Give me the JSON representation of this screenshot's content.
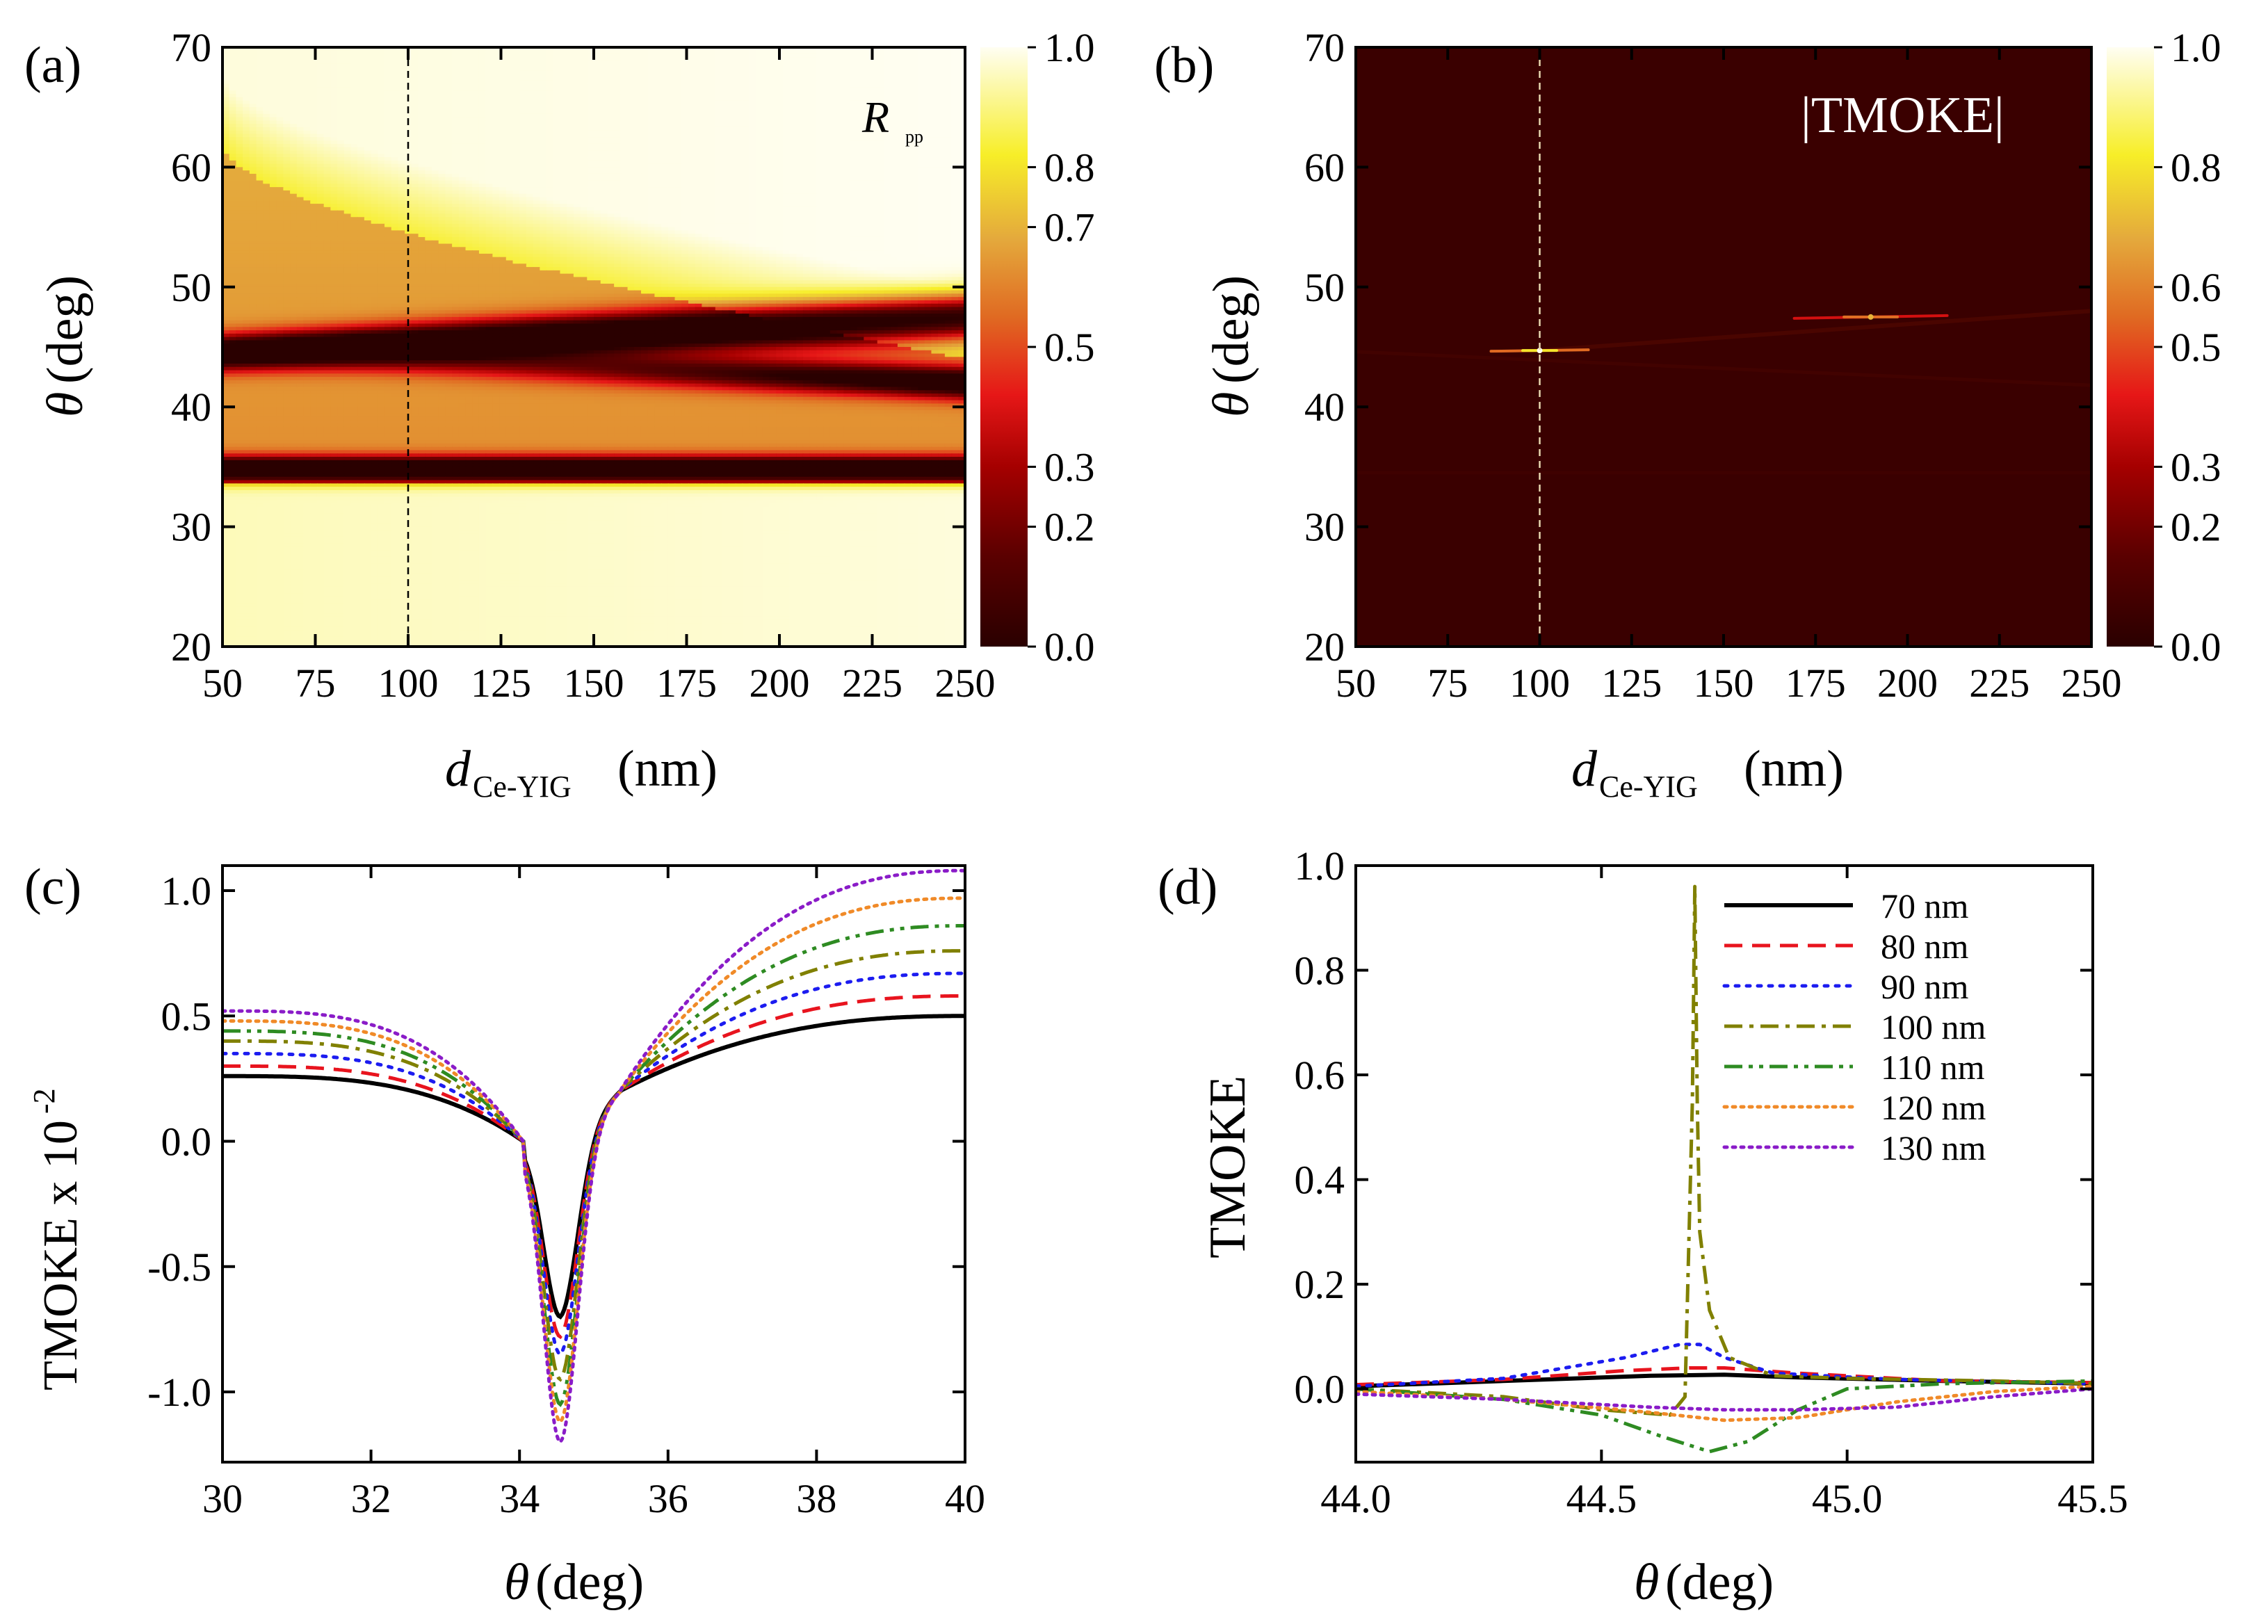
{
  "chart_data": [
    {
      "panel": "(a)",
      "type": "heatmap",
      "title": "R",
      "title_sub": "pp",
      "xlabel": "d",
      "xlabel_sub": "Ce-YIG",
      "xlabel_unit": "(nm)",
      "ylabel_sym": "θ",
      "ylabel_unit": "(deg)",
      "xlim": [
        50,
        250
      ],
      "ylim": [
        20,
        70
      ],
      "xticks": [
        "50",
        "75",
        "100",
        "125",
        "150",
        "175",
        "200",
        "225",
        "250"
      ],
      "yticks": [
        "20",
        "30",
        "40",
        "50",
        "60",
        "70"
      ],
      "colorbar": {
        "range": [
          0,
          1
        ],
        "ticks": [
          "0.0",
          "0.2",
          "0.3",
          "0.5",
          "0.7",
          "0.8",
          "1.0"
        ]
      },
      "marker_line_x": 100,
      "features": [
        {
          "description_value": "dip",
          "theta": 34.8,
          "strength": 0.97
        },
        {
          "description_value": "dip",
          "theta_at_50": 44.5,
          "theta_at_250": 47.5,
          "strength": 0.93
        },
        {
          "description_value": "dip",
          "theta_at_50": 44.5,
          "theta_at_250": 42.0,
          "strength": 0.85
        }
      ]
    },
    {
      "panel": "(b)",
      "type": "heatmap",
      "title": "|TMOKE|",
      "xlabel": "d",
      "xlabel_sub": "Ce-YIG",
      "xlabel_unit": "(nm)",
      "ylabel_sym": "θ",
      "ylabel_unit": "(deg)",
      "xlim": [
        50,
        250
      ],
      "ylim": [
        20,
        70
      ],
      "xticks": [
        "50",
        "75",
        "100",
        "125",
        "150",
        "175",
        "200",
        "225",
        "250"
      ],
      "yticks": [
        "20",
        "30",
        "40",
        "50",
        "60",
        "70"
      ],
      "colorbar": {
        "range": [
          0,
          1
        ],
        "ticks": [
          "0.0",
          "0.2",
          "0.3",
          "0.5",
          "0.6",
          "0.8",
          "1.0"
        ]
      },
      "marker_line_x": 100,
      "hot_spots": [
        {
          "d": 100,
          "theta": 44.7,
          "value": 1.0
        },
        {
          "d": 190,
          "theta": 47.5,
          "value": 0.7
        }
      ]
    },
    {
      "panel": "(c)",
      "type": "line",
      "xlabel_sym": "θ",
      "xlabel_unit": "(deg)",
      "ylabel": "TMOKE x 10",
      "ylabel_exp": "-2",
      "xlim": [
        30,
        40
      ],
      "ylim": [
        -1.28,
        1.1
      ],
      "xticks": [
        "30",
        "32",
        "34",
        "36",
        "38",
        "40"
      ],
      "yticks": [
        "-1.0",
        "-0.5",
        "0.0",
        "0.5",
        "1.0"
      ],
      "series": [
        {
          "name": "70 nm",
          "left": 0.26,
          "right": 0.5,
          "min": -0.7,
          "color": "#000000",
          "dash": "solid"
        },
        {
          "name": "80 nm",
          "left": 0.3,
          "right": 0.58,
          "min": -0.78,
          "color": "#e8141e",
          "dash": "dash"
        },
        {
          "name": "90 nm",
          "left": 0.35,
          "right": 0.67,
          "min": -0.85,
          "color": "#1c1cf0",
          "dash": "dot"
        },
        {
          "name": "100 nm",
          "left": 0.4,
          "right": 0.76,
          "min": -0.95,
          "color": "#808000",
          "dash": "dashdot"
        },
        {
          "name": "110 nm",
          "left": 0.44,
          "right": 0.86,
          "min": -1.05,
          "color": "#2e8b22",
          "dash": "dashdotdot"
        },
        {
          "name": "120 nm",
          "left": 0.48,
          "right": 0.97,
          "min": -1.12,
          "color": "#f08a28",
          "dash": "shortdot"
        },
        {
          "name": "130 nm",
          "left": 0.52,
          "right": 1.08,
          "min": -1.2,
          "color": "#8a1cc8",
          "dash": "shortdot"
        }
      ]
    },
    {
      "panel": "(d)",
      "type": "line",
      "xlabel_sym": "θ",
      "xlabel_unit": "(deg)",
      "ylabel": "TMOKE",
      "xlim": [
        44.0,
        45.5
      ],
      "ylim": [
        -0.14,
        1.0
      ],
      "xticks": [
        "44.0",
        "44.5",
        "45.0",
        "45.5"
      ],
      "yticks": [
        "0.0",
        "0.2",
        "0.4",
        "0.6",
        "0.8",
        "1.0"
      ],
      "legend": [
        "70 nm",
        "80 nm",
        "90 nm",
        "100 nm",
        "110 nm",
        "120 nm",
        "130 nm"
      ],
      "legend_placement": "top-right",
      "series": [
        {
          "name": "70 nm",
          "color": "#000000",
          "dash": "solid",
          "x": [
            44.0,
            44.3,
            44.6,
            44.75,
            44.9,
            45.2,
            45.5
          ],
          "y": [
            0.005,
            0.015,
            0.025,
            0.027,
            0.022,
            0.015,
            0.01
          ]
        },
        {
          "name": "80 nm",
          "color": "#e8141e",
          "dash": "dash",
          "x": [
            44.0,
            44.3,
            44.55,
            44.68,
            44.75,
            44.9,
            45.2,
            45.5
          ],
          "y": [
            0.008,
            0.018,
            0.035,
            0.04,
            0.04,
            0.03,
            0.015,
            0.012
          ]
        },
        {
          "name": "90 nm",
          "color": "#1c1cf0",
          "dash": "dot",
          "x": [
            44.0,
            44.3,
            44.55,
            44.66,
            44.7,
            44.75,
            44.85,
            45.1,
            45.5
          ],
          "y": [
            0.005,
            0.02,
            0.06,
            0.085,
            0.085,
            0.06,
            0.03,
            0.018,
            0.01
          ]
        },
        {
          "name": "100 nm",
          "color": "#808000",
          "dash": "dashdot",
          "x": [
            44.0,
            44.3,
            44.5,
            44.64,
            44.67,
            44.685,
            44.69,
            44.695,
            44.7,
            44.72,
            44.76,
            44.85,
            45.0,
            45.3,
            45.5
          ],
          "y": [
            0.0,
            -0.015,
            -0.04,
            -0.05,
            -0.015,
            0.55,
            0.96,
            0.55,
            0.3,
            0.15,
            0.06,
            0.025,
            0.02,
            0.015,
            0.01
          ]
        },
        {
          "name": "110 nm",
          "color": "#2e8b22",
          "dash": "dashdotdot",
          "x": [
            44.0,
            44.3,
            44.5,
            44.62,
            44.72,
            44.8,
            44.9,
            45.0,
            45.2,
            45.5
          ],
          "y": [
            0.0,
            -0.02,
            -0.05,
            -0.09,
            -0.12,
            -0.1,
            -0.04,
            0.0,
            0.01,
            0.015
          ]
        },
        {
          "name": "120 nm",
          "color": "#f08a28",
          "dash": "shortdot",
          "x": [
            44.0,
            44.3,
            44.6,
            44.75,
            44.9,
            45.1,
            45.3,
            45.5
          ],
          "y": [
            -0.005,
            -0.02,
            -0.045,
            -0.06,
            -0.055,
            -0.025,
            -0.005,
            0.005
          ]
        },
        {
          "name": "130 nm",
          "color": "#8a1cc8",
          "dash": "shortdot",
          "x": [
            44.0,
            44.3,
            44.6,
            44.75,
            44.9,
            45.1,
            45.3,
            45.5
          ],
          "y": [
            -0.01,
            -0.02,
            -0.035,
            -0.04,
            -0.04,
            -0.035,
            -0.015,
            0.0
          ]
        }
      ]
    }
  ]
}
